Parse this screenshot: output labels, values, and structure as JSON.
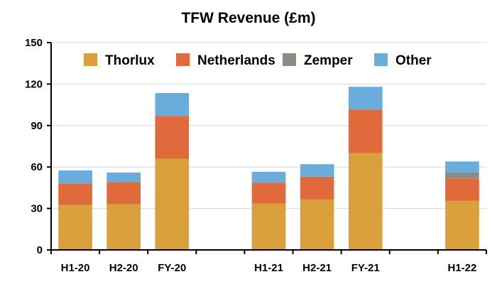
{
  "chart_data": {
    "type": "bar",
    "stacked": true,
    "title": "TFW Revenue (£m)",
    "categories": [
      "H1-20",
      "H2-20",
      "FY-20",
      "",
      "H1-21",
      "H2-21",
      "FY-21",
      "",
      "H1-22"
    ],
    "series": [
      {
        "name": "Thorlux",
        "color": "#D9A03C",
        "values": [
          32.5,
          33,
          66,
          null,
          33.5,
          36.5,
          70,
          null,
          35.5
        ]
      },
      {
        "name": "Netherlands",
        "color": "#E06A3C",
        "values": [
          15.5,
          16,
          31,
          null,
          15,
          16.5,
          31.5,
          null,
          16
        ]
      },
      {
        "name": "Zemper",
        "color": "#8C8C84",
        "values": [
          0,
          0,
          0,
          null,
          0,
          0,
          0,
          null,
          4.5
        ]
      },
      {
        "name": "Other",
        "color": "#6AACDC",
        "values": [
          9.5,
          7,
          16.5,
          null,
          8,
          9,
          16.5,
          null,
          8
        ]
      }
    ],
    "xlabel": "",
    "ylabel": "",
    "ylim": [
      0,
      150
    ],
    "yticks": [
      0,
      30,
      60,
      90,
      120,
      150
    ],
    "grid": true,
    "legend": "top"
  }
}
